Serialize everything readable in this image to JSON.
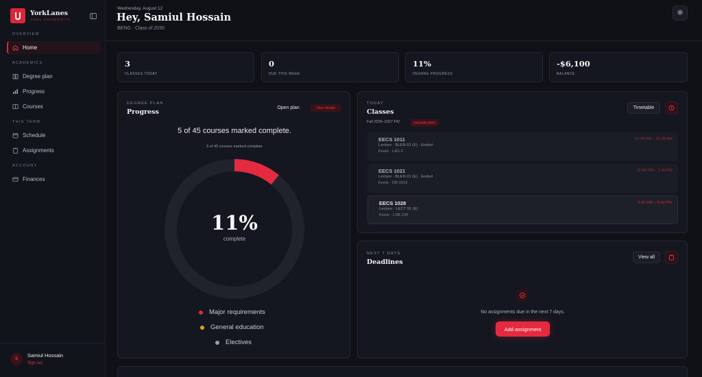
{
  "brand": {
    "name": "YorkLanes",
    "subtitle": "YORK UNIVERSITY"
  },
  "sidebar": {
    "sections": [
      {
        "label": "OVERVIEW"
      },
      {
        "label": "ACADEMICS"
      },
      {
        "label": "THIS TERM"
      },
      {
        "label": "ACCOUNT"
      }
    ],
    "items": [
      {
        "label": "Home",
        "icon": "home-icon"
      },
      {
        "label": "Degree plan",
        "icon": "book-icon"
      },
      {
        "label": "Progress",
        "icon": "bar-chart-icon"
      },
      {
        "label": "Courses",
        "icon": "courses-icon"
      },
      {
        "label": "Schedule",
        "icon": "calendar-icon"
      },
      {
        "label": "Assignments",
        "icon": "clipboard-icon"
      },
      {
        "label": "Finances",
        "icon": "wallet-icon"
      }
    ],
    "user": {
      "name": "Samiul Hossain",
      "initial": "S",
      "sign_out": "Sign out"
    }
  },
  "header": {
    "date": "Wednesday, August 12",
    "greeting": "Hey, Samiul Hossain",
    "subtitle": "BENG · Class of 2030"
  },
  "stats": [
    {
      "value": "3",
      "label": "CLASSES TODAY"
    },
    {
      "value": "0",
      "label": "DUE THIS WEEK"
    },
    {
      "value": "11%",
      "label": "DEGREE PROGRESS"
    },
    {
      "value": "-$6,100",
      "label": "BALANCE"
    }
  ],
  "progress": {
    "eyebrow": "DEGREE PLAN",
    "title": "Progress",
    "open_plan": "Open plan",
    "view_details": "View details",
    "headline": "5 of 45 courses marked complete.",
    "small": "5 of 45 courses marked complete",
    "percent_value": 11,
    "percent": "11%",
    "percent_sub": "complete",
    "legend": [
      {
        "label": "Major requirements",
        "color": "#e32a3f"
      },
      {
        "label": "General education",
        "color": "#d9a227"
      },
      {
        "label": "Electives",
        "color": "#9aa0ab"
      }
    ],
    "colors": {
      "fill": "#e32a3f",
      "track": "#20232b"
    }
  },
  "classes": {
    "eyebrow": "TODAY",
    "title": "Classes",
    "timetable": "Timetable",
    "term": "Fall 2026–2027 FW",
    "badge": "DASHBOARD",
    "items": [
      {
        "code": "EECS 1011",
        "line1": "Lecture · BLEN 01 (E) · Ended",
        "line2": "Keele · LAS C",
        "time": "10:30 AM – 11:30 AM"
      },
      {
        "code": "EECS 1021",
        "line1": "Lecture · BLEN 01 (E) · Ended",
        "line2": "Keele · DB 0016",
        "time": "12:30 PM – 1:30 PM"
      },
      {
        "code": "EECS 1028",
        "line1": "Lecture · LECT 01 (E)",
        "line2": "Keele · LSB 106",
        "time": "5:30 PM – 6:50 PM"
      }
    ]
  },
  "deadlines": {
    "eyebrow": "NEXT 7 DAYS",
    "title": "Deadlines",
    "view_all": "View all",
    "empty": "No assignments due in the next 7 days.",
    "add": "Add assignment"
  }
}
